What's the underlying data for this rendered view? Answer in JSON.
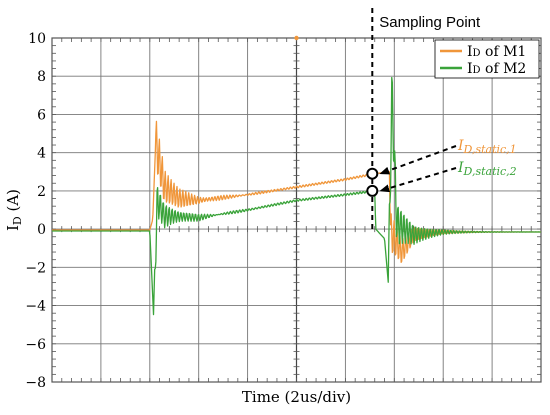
{
  "chart_data": {
    "type": "line",
    "title": "",
    "xlabel": "Time (2us/div)",
    "ylabel": "ID (A)",
    "ylabel_parts": {
      "main": "I",
      "sub": "D",
      "unit": " (A)"
    },
    "x_divisions": 10,
    "x_units": "div",
    "xlim": [
      0,
      10
    ],
    "ylim": [
      -8,
      10
    ],
    "yticks": [
      10,
      8,
      6,
      4,
      2,
      0,
      -2,
      -4,
      -6,
      -8
    ],
    "ytick_labels": [
      "10",
      "8",
      "6",
      "4",
      "2",
      "0",
      "−2",
      "−4",
      "−6",
      "−8"
    ],
    "grid": true,
    "legend_position": "top-right",
    "series": [
      {
        "name": "ID of M1",
        "legend_parts": {
          "main": "I",
          "sub": "D",
          "rest": " of M1"
        },
        "color": "#f0963a",
        "points": [
          [
            0,
            -0.05
          ],
          [
            2.0,
            -0.05
          ],
          [
            2.06,
            0.5
          ],
          [
            2.12,
            4.5
          ],
          [
            2.3,
            2.2
          ],
          [
            2.6,
            1.6
          ],
          [
            3.0,
            1.5
          ],
          [
            4.0,
            1.8
          ],
          [
            5.0,
            2.2
          ],
          [
            6.0,
            2.6
          ],
          [
            6.6,
            2.9
          ],
          [
            6.9,
            3.0
          ],
          [
            6.92,
            -0.2
          ],
          [
            7.0,
            -0.5
          ],
          [
            7.15,
            -1.2
          ],
          [
            7.4,
            -0.3
          ],
          [
            8.0,
            -0.15
          ],
          [
            10,
            -0.15
          ]
        ]
      },
      {
        "name": "ID of M2",
        "legend_parts": {
          "main": "I",
          "sub": "D",
          "rest": " of M2"
        },
        "color": "#3aa33a",
        "points": [
          [
            0,
            -0.1
          ],
          [
            2.0,
            -0.1
          ],
          [
            2.08,
            -4.7
          ],
          [
            2.15,
            1.5
          ],
          [
            2.3,
            0.7
          ],
          [
            3.0,
            0.6
          ],
          [
            4.0,
            1.0
          ],
          [
            5.0,
            1.5
          ],
          [
            6.0,
            1.8
          ],
          [
            6.6,
            2.0
          ],
          [
            6.62,
            0.0
          ],
          [
            6.8,
            -0.5
          ],
          [
            6.88,
            -2.9
          ],
          [
            6.95,
            7.2
          ],
          [
            7.05,
            0.3
          ],
          [
            7.4,
            -0.3
          ],
          [
            8.0,
            -0.15
          ],
          [
            10,
            -0.15
          ]
        ]
      }
    ],
    "sampling_point": {
      "label": "Sampling Point",
      "x": 6.55
    },
    "annotations": [
      {
        "main": "I",
        "sub": "D,static,1",
        "color": "#f0963a",
        "value": 2.9
      },
      {
        "main": "I",
        "sub": "D,static,2",
        "color": "#3aa33a",
        "value": 2.0
      }
    ],
    "marker_at_top": {
      "x": 5.0,
      "y": 10,
      "color": "#f0963a"
    }
  }
}
